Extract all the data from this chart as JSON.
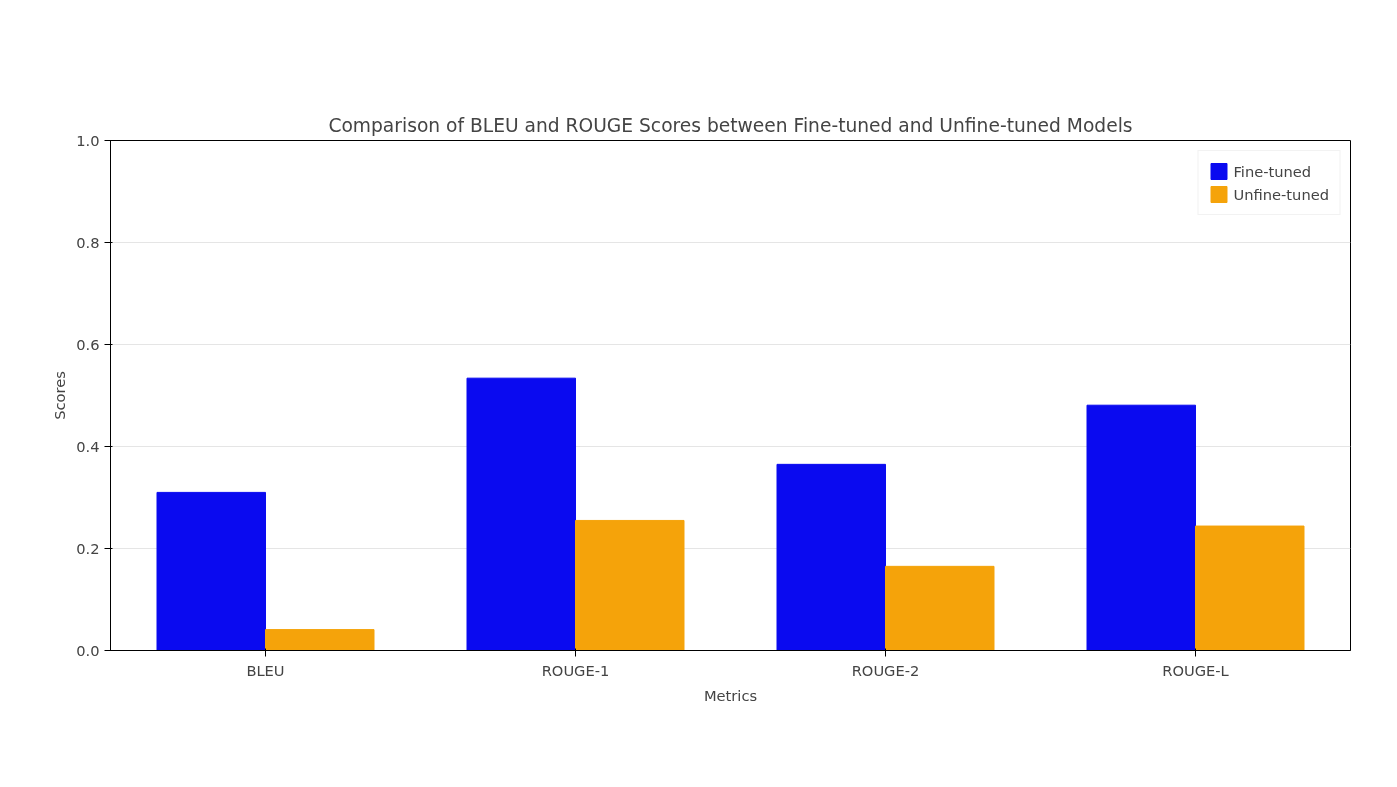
{
  "chart_data": {
    "type": "bar",
    "title": "Comparison of BLEU and ROUGE Scores between Fine-tuned and Unfine-tuned Models",
    "xlabel": "Metrics",
    "ylabel": "Scores",
    "categories": [
      "BLEU",
      "ROUGE-1",
      "ROUGE-2",
      "ROUGE-L"
    ],
    "series": [
      {
        "name": "Fine-tuned",
        "color": "#0a0af0",
        "values": [
          0.31,
          0.534,
          0.365,
          0.481
        ]
      },
      {
        "name": "Unfine-tuned",
        "color": "#f5a30a",
        "values": [
          0.041,
          0.255,
          0.165,
          0.244
        ]
      }
    ],
    "ylim": [
      0,
      1
    ],
    "yticks": [
      {
        "value": 0,
        "label": "0.0"
      },
      {
        "value": 0.2,
        "label": "0.2"
      },
      {
        "value": 0.4,
        "label": "0.4"
      },
      {
        "value": 0.6,
        "label": "0.6"
      },
      {
        "value": 0.8,
        "label": "0.8"
      },
      {
        "value": 1,
        "label": "1.0"
      }
    ],
    "grid": "y",
    "legend": "top right"
  }
}
